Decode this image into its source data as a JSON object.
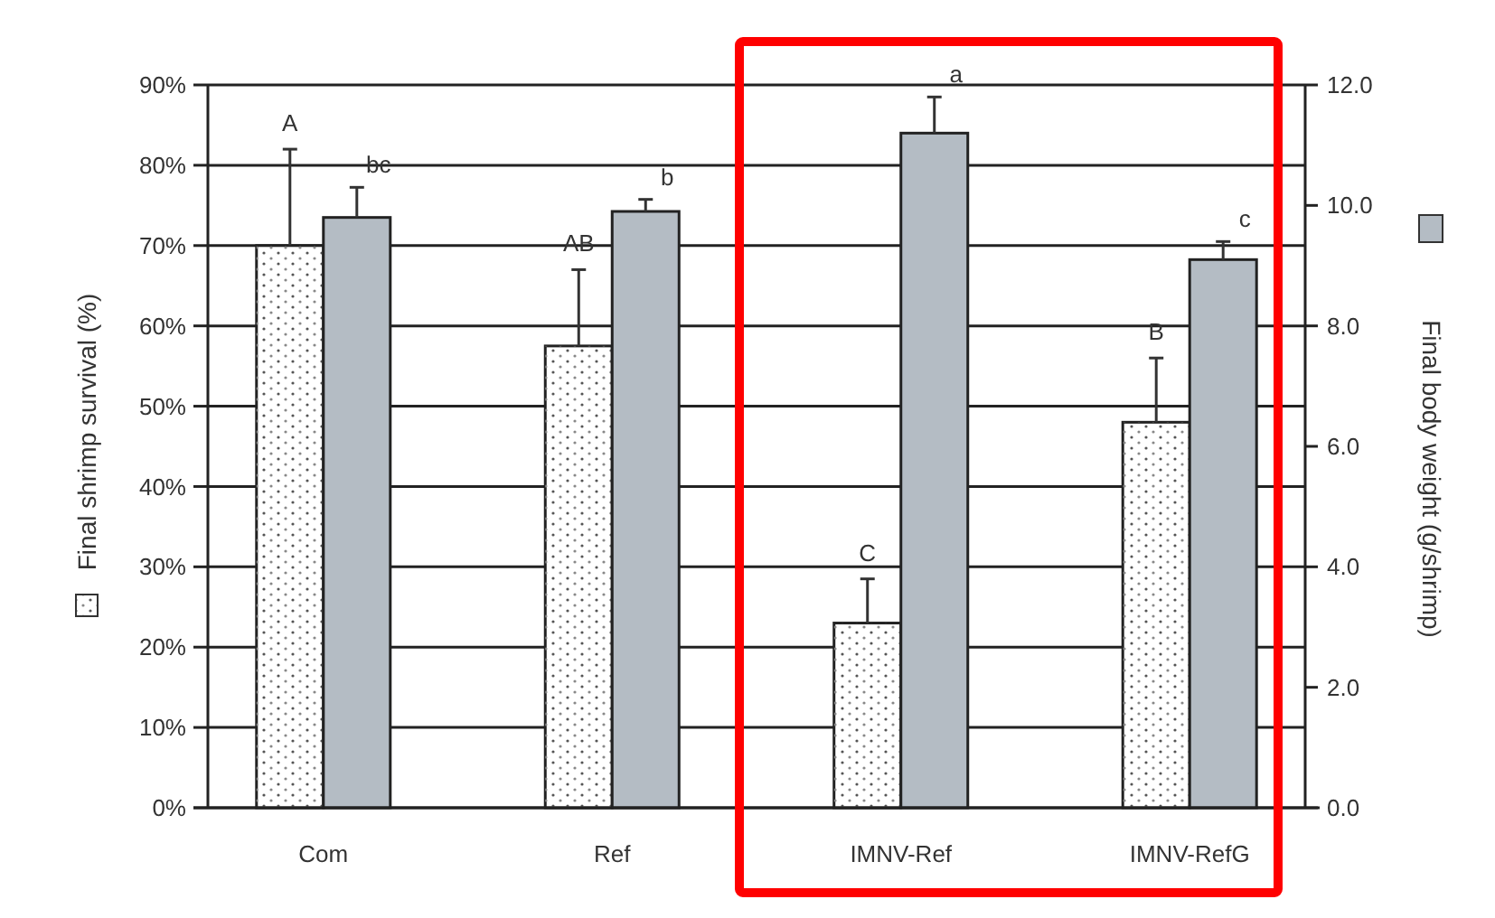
{
  "chart_data": {
    "type": "bar",
    "categories": [
      "Com",
      "Ref",
      "IMNV-Ref",
      "IMNV-RefG"
    ],
    "ylabel": "Final shrimp survival (%)",
    "y2label": "Final body weight (g/shrimp)",
    "series": [
      {
        "color": "#ffffff",
        "values": [
          70,
          57.5,
          23,
          48
        ],
        "errors": [
          12,
          9.5,
          5.5,
          8
        ]
      },
      {
        "color": "#b4bcc4",
        "axis": "y2",
        "values": [
          9.8,
          9.9,
          11.2,
          9.1
        ],
        "errors": [
          0.5,
          0.2,
          0.6,
          0.3
        ]
      }
    ],
    "ylim": [
      0,
      90
    ],
    "yticks": [
      {
        "value": 0,
        "label": "0%"
      },
      {
        "value": 10,
        "label": "10%"
      },
      {
        "value": 20,
        "label": "20%"
      },
      {
        "value": 30,
        "label": "30%"
      },
      {
        "value": 40,
        "label": "40%"
      },
      {
        "value": 50,
        "label": "50%"
      },
      {
        "value": 60,
        "label": "60%"
      },
      {
        "value": 70,
        "label": "70%"
      },
      {
        "value": 80,
        "label": "80%"
      },
      {
        "value": 90,
        "label": "90%"
      }
    ],
    "y2lim": [
      0,
      12
    ],
    "y2ticks": [
      {
        "value": 0,
        "label": "0.0"
      },
      {
        "value": 2,
        "label": "2.0"
      },
      {
        "value": 4,
        "label": "4.0"
      },
      {
        "value": 6,
        "label": "6.0"
      },
      {
        "value": 8,
        "label": "8.0"
      },
      {
        "value": 10,
        "label": "10.0"
      },
      {
        "value": 12,
        "label": "12.0"
      }
    ],
    "grid": "y",
    "annotations": [
      "A",
      "bc",
      "AB",
      "b",
      "C",
      "a",
      "B",
      "c"
    ]
  }
}
